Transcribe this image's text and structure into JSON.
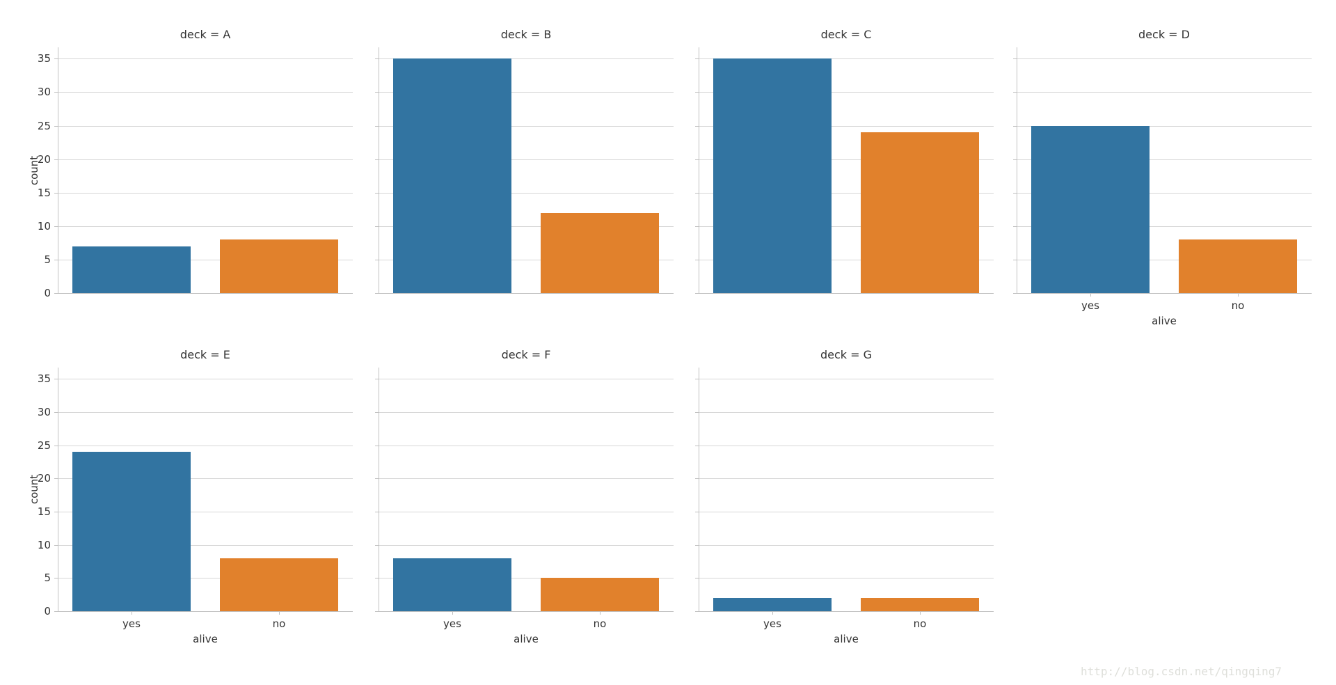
{
  "chart_data": {
    "type": "bar",
    "facet_var": "deck",
    "xlabel": "alive",
    "ylabel": "count",
    "categories": [
      "yes",
      "no"
    ],
    "yticks": [
      0,
      5,
      10,
      15,
      20,
      25,
      30,
      35
    ],
    "ylim": [
      0,
      36.7
    ],
    "grid": true,
    "legend": "none",
    "bar_colors": {
      "yes": "#3274a1",
      "no": "#e1812c"
    },
    "facets": [
      {
        "title": "deck = A",
        "values": {
          "yes": 7,
          "no": 8
        }
      },
      {
        "title": "deck = B",
        "values": {
          "yes": 35,
          "no": 12
        }
      },
      {
        "title": "deck = C",
        "values": {
          "yes": 35,
          "no": 24
        }
      },
      {
        "title": "deck = D",
        "values": {
          "yes": 25,
          "no": 8
        }
      },
      {
        "title": "deck = E",
        "values": {
          "yes": 24,
          "no": 8
        }
      },
      {
        "title": "deck = F",
        "values": {
          "yes": 8,
          "no": 5
        }
      },
      {
        "title": "deck = G",
        "values": {
          "yes": 2,
          "no": 2
        }
      }
    ]
  },
  "style": {
    "background": "#ffffff",
    "grid_color": "#d6d6d6",
    "spine_color": "#c0c0c0",
    "text_color": "#333333",
    "watermark_color": "#dedfda"
  },
  "watermark": {
    "text": "http://blog.csdn.net/qingqing7"
  }
}
